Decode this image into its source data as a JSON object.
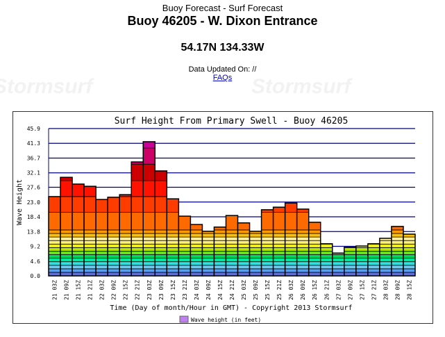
{
  "header": {
    "supertitle": "Buoy Forecast - Surf Forecast",
    "title": "Buoy 46205 - W. Dixon Entrance",
    "coords": "54.17N 134.33W",
    "updated": "Data Updated On: //",
    "faqs": "FAQs",
    "watermark": "Stormsurf"
  },
  "chart_data": {
    "type": "bar",
    "title": "Surf Height From Primary Swell - Buoy 46205",
    "xlabel": "Time (Day of month/Hour in GMT) - Copyright 2013 Stormsurf",
    "ylabel": "Wave Height",
    "legend": "Wave height (in feet)",
    "legend_position": "bottom",
    "ylim": [
      0,
      45.9
    ],
    "yticks": [
      "0.0",
      "4.6",
      "9.2",
      "13.8",
      "18.4",
      "23.0",
      "27.6",
      "32.1",
      "36.7",
      "41.3",
      "45.9"
    ],
    "categories": [
      "21 03Z",
      "21 09Z",
      "21 15Z",
      "21 21Z",
      "22 03Z",
      "22 09Z",
      "22 15Z",
      "22 21Z",
      "23 03Z",
      "23 09Z",
      "23 15Z",
      "23 21Z",
      "24 03Z",
      "24 09Z",
      "24 15Z",
      "24 21Z",
      "25 03Z",
      "25 09Z",
      "25 15Z",
      "25 21Z",
      "26 03Z",
      "26 09Z",
      "26 15Z",
      "26 21Z",
      "27 03Z",
      "27 09Z",
      "27 15Z",
      "27 21Z",
      "28 03Z",
      "28 09Z",
      "28 15Z"
    ],
    "values": [
      24.7,
      30.7,
      28.6,
      27.9,
      23.8,
      24.5,
      25.3,
      35.5,
      41.8,
      32.7,
      24.0,
      18.6,
      16.0,
      13.9,
      15.2,
      18.8,
      16.5,
      13.9,
      20.6,
      21.4,
      22.7,
      20.8,
      16.7,
      10.0,
      7.1,
      8.9,
      9.3,
      10.0,
      11.7,
      15.4,
      13.0
    ],
    "bands": [
      0,
      1.1,
      2.2,
      3.3,
      4.4,
      5.5,
      6.6,
      7.7,
      8.8,
      9.9,
      11,
      12.1,
      13.2,
      14.3,
      19.8,
      24.7,
      29.7,
      34.8,
      39.8,
      46
    ],
    "band_colors": [
      "#5a6ee8",
      "#5a9ef0",
      "#66ccf2",
      "#33e0e0",
      "#00e8a0",
      "#00d860",
      "#66e020",
      "#b8e800",
      "#f0f020",
      "#fff070",
      "#fff0a0",
      "#ffc000",
      "#ff9900",
      "#ff6a00",
      "#ff3c00",
      "#ff1200",
      "#cc0000",
      "#cc0066",
      "#cc0099",
      "#cc00ff"
    ],
    "grid": true
  }
}
